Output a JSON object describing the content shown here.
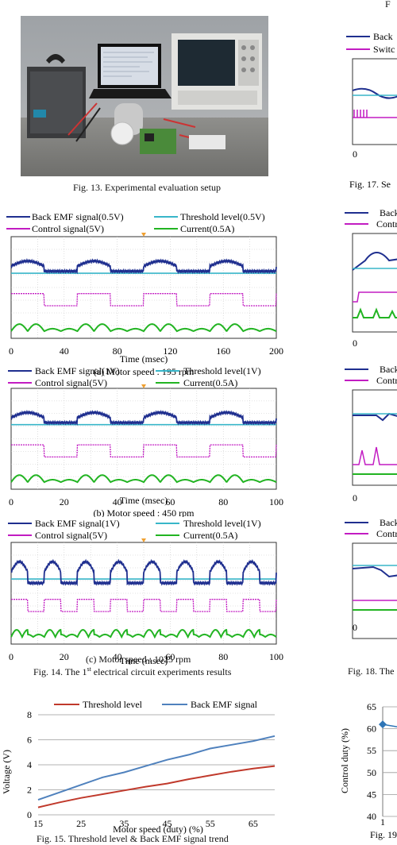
{
  "colors": {
    "back_emf": "#1f2f8f",
    "threshold": "#38b6c9",
    "control": "#c21cc2",
    "current": "#22b422",
    "threshold_trend": "#c0392b",
    "backemf_trend": "#4f81bd",
    "duty_series": "#2e75b6"
  },
  "header_fragment": "F",
  "fig13_caption": "Fig. 13. Experimental evaluation setup",
  "fig14": {
    "caption_prefix": "Fig. 14. The 1",
    "caption_sup": "st",
    "caption_suffix": " electrical circuit experiments results",
    "xlabel": "Time (msec)",
    "panels": [
      {
        "legend": [
          "Back EMF signal(0.5V)",
          "Threshold level(0.5V)",
          "Control signal(5V)",
          "Current(0.5A)"
        ],
        "ticks": [
          "0",
          "40",
          "80",
          "120",
          "160",
          "200"
        ],
        "subcaption": "(a) Motor speed : 195 rpm",
        "waveform_periods": 4
      },
      {
        "legend": [
          "Back EMF signal(1V)",
          "Threshold level(1V)",
          "Control signal(5V)",
          "Current(0.5A)"
        ],
        "ticks": [
          "0",
          "20",
          "40",
          "60",
          "80",
          "100"
        ],
        "subcaption": "(b) Motor speed : 450 rpm",
        "waveform_periods": 4
      },
      {
        "legend": [
          "Back EMF signal(1V)",
          "Threshold level(1V)",
          "Control signal(5V)",
          "Current(0.5A)"
        ],
        "ticks": [
          "0",
          "20",
          "40",
          "60",
          "80",
          "100"
        ],
        "subcaption": "(c) Motor speed : 1025 rpm",
        "waveform_periods": 8
      }
    ]
  },
  "chart_data": [
    {
      "type": "line",
      "title": "",
      "xlabel": "Motor speed (duty) (%)",
      "ylabel": "Voltage (V)",
      "x_ticks": [
        15,
        25,
        35,
        45,
        55,
        65
      ],
      "y_ticks": [
        0,
        2,
        4,
        6,
        8
      ],
      "xlim": [
        15,
        70
      ],
      "ylim": [
        0,
        8
      ],
      "grid": "horizontal",
      "legend_position": "top",
      "series": [
        {
          "name": "Threshold level",
          "x": [
            15,
            20,
            25,
            30,
            35,
            40,
            45,
            50,
            55,
            60,
            65,
            70
          ],
          "values": [
            0.6,
            1.0,
            1.35,
            1.65,
            1.95,
            2.25,
            2.5,
            2.85,
            3.15,
            3.45,
            3.7,
            3.9
          ]
        },
        {
          "name": "Back EMF signal",
          "x": [
            15,
            20,
            25,
            30,
            35,
            40,
            45,
            50,
            55,
            60,
            65,
            70
          ],
          "values": [
            1.2,
            1.8,
            2.4,
            3.0,
            3.4,
            3.9,
            4.4,
            4.8,
            5.3,
            5.6,
            5.9,
            6.3
          ]
        }
      ],
      "caption": "Fig. 15. Threshold level & Back EMF signal trend"
    },
    {
      "type": "line",
      "ylabel": "Control duty (%)",
      "y_ticks": [
        40,
        45,
        50,
        55,
        60,
        65
      ],
      "ylim": [
        40,
        65
      ],
      "x_tick_first": "1",
      "series": [
        {
          "x": [
            1
          ],
          "values": [
            61
          ]
        }
      ],
      "caption_fragment": "Fig. 19"
    }
  ],
  "right_column": {
    "fig17_legend": [
      "Back",
      "Switc"
    ],
    "fig17_zero": "0",
    "fig17_caption": "Fig. 17. Se",
    "fig18_panels": [
      {
        "legend": [
          "Back",
          "Contr"
        ],
        "zero": "0"
      },
      {
        "legend": [
          "Back",
          "Contr"
        ],
        "zero": "0"
      },
      {
        "legend": [
          "Back",
          "Contr"
        ],
        "zero": "0"
      }
    ],
    "fig18_caption": "Fig. 18. The"
  }
}
